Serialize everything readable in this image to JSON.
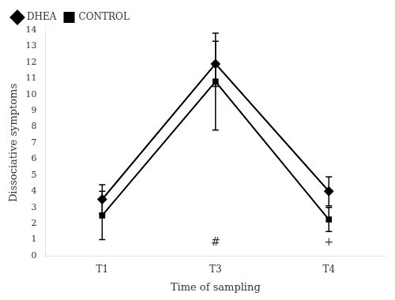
{
  "chart_data": {
    "type": "line",
    "xlabel": "Time of sampling",
    "ylabel": "Dissociative symptoms",
    "categories": [
      "T1",
      "T3",
      "T4"
    ],
    "series": [
      {
        "name": "DHEA",
        "color": "black",
        "marker": "diamond",
        "values": [
          3.5,
          11.9,
          4.0
        ],
        "errors": [
          0.9,
          1.4,
          0.9
        ]
      },
      {
        "name": "CONTROL",
        "color": "black",
        "marker": "square",
        "values": [
          2.5,
          10.8,
          2.25
        ],
        "errors": [
          1.5,
          3.0,
          0.75
        ]
      }
    ],
    "ylim": [
      0,
      14
    ],
    "yticks": [
      0,
      1,
      2,
      3,
      4,
      5,
      6,
      7,
      8,
      9,
      10,
      11,
      12,
      13,
      14
    ],
    "annotations": [
      {
        "text": "#",
        "x": "T3",
        "y": 0.45
      },
      {
        "text": "+",
        "x": "T4",
        "y": 0.45
      }
    ],
    "legend": "upper left",
    "grid": false
  }
}
